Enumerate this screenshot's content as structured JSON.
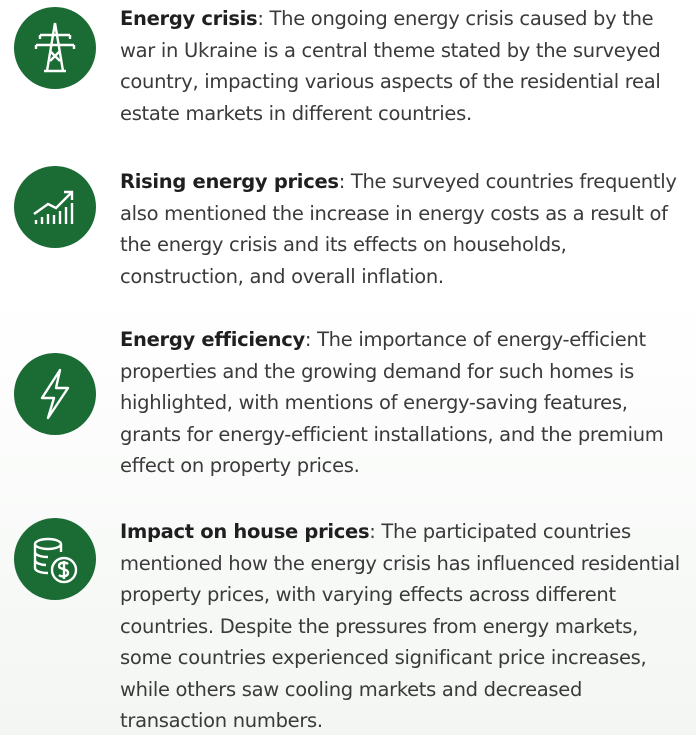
{
  "items": [
    {
      "term": "Energy crisis",
      "text": ": The ongoing energy crisis caused by the war in Ukraine is a central theme stated by the surveyed country, impacting various aspects of the residential real estate markets in different countries."
    },
    {
      "term": "Rising energy prices",
      "text": ": The surveyed countries frequently also mentioned the increase in energy costs as a result of the energy crisis and its effects on households, construction, and overall inflation."
    },
    {
      "term": "Energy efficiency",
      "text": ": The importance of energy-efficient properties and the growing demand for such homes is highlighted, with mentions of energy-saving features, grants for energy-efficient installations, and the premium effect on property prices."
    },
    {
      "term": "Impact on house prices",
      "text": ": The participated countries mentioned how the energy crisis has influenced residential property prices, with varying effects across different countries. Despite the pressures from energy markets, some countries experienced significant price increases, while others saw cooling markets and decreased transaction numbers."
    }
  ]
}
